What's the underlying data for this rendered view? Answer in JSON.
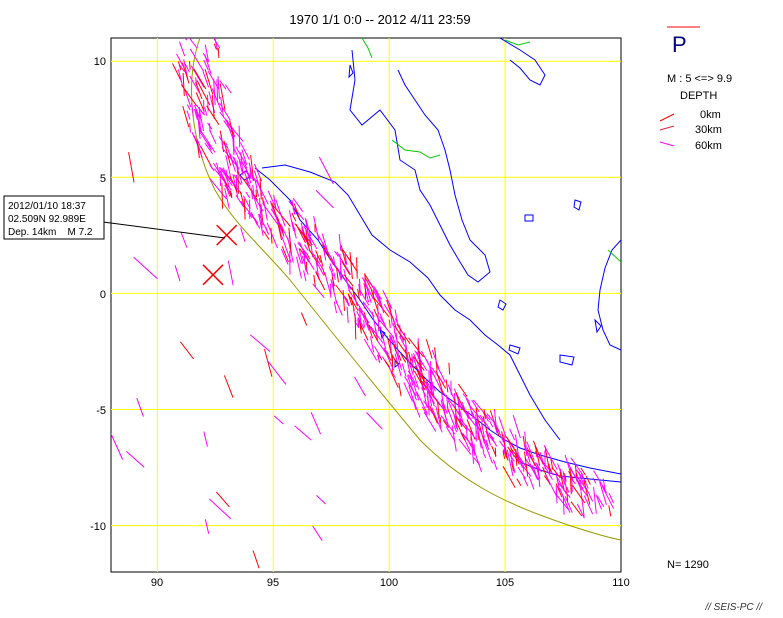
{
  "title": "1970 1/1 0:0 -- 2012 4/11 23:59",
  "axes": {
    "x_ticks": [
      "90",
      "95",
      "100",
      "105",
      "110"
    ],
    "y_ticks": [
      "10",
      "5",
      "0",
      "-5",
      "-10"
    ],
    "lon_range": [
      88,
      110
    ],
    "lat_range": [
      -12,
      11
    ]
  },
  "legend": {
    "letter": "P",
    "magnitude": "M : 5 <=> 9.9",
    "depth_label": "DEPTH",
    "depths": [
      {
        "label": "0km",
        "color": "#ff0000"
      },
      {
        "label": "30km",
        "color": "#e8203c"
      },
      {
        "label": "60km",
        "color": "#ff00ff"
      }
    ]
  },
  "count": "N= 1290",
  "footer": "// SEIS-PC //",
  "callout": {
    "line1": "2012/01/10 18:37",
    "line2": "02.509N  92.989E",
    "line3": "Dep. 14km    M 7.2"
  },
  "events": [
    {
      "lon": 92.99,
      "lat": 2.51,
      "color": "#ff0000",
      "size": 10
    },
    {
      "lon": 92.4,
      "lat": 0.8,
      "color": "#ff0000",
      "size": 10
    }
  ],
  "colors": {
    "grid": "#ffff00",
    "coast": "#0000ff",
    "border": "#00cc00",
    "trench": "#999900",
    "shallow": "#ff0000",
    "deep": "#ff00ff"
  }
}
